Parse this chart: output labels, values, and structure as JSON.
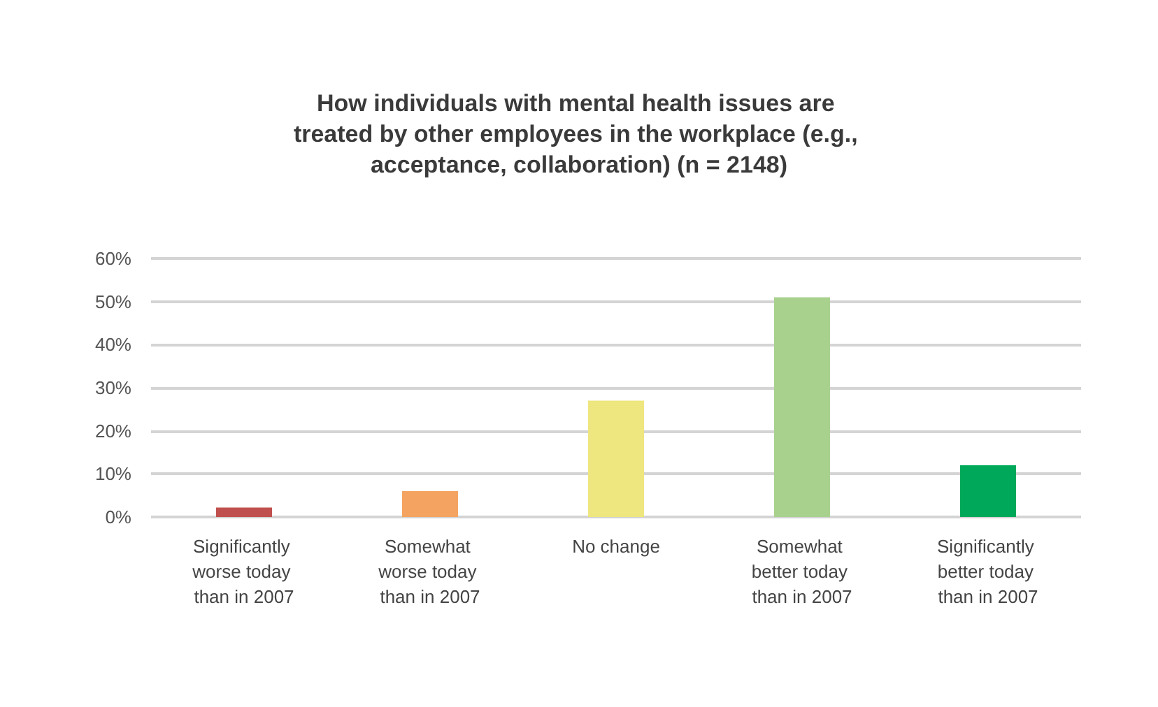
{
  "chart_data": {
    "type": "bar",
    "title": "How individuals with mental health issues are treated by other employees in the workplace (e.g., acceptance, collaboration) (n = 2148)",
    "categories": [
      "Significantly worse today than in 2007",
      "Somewhat worse today than in 2007",
      "No change",
      "Somewhat better today than in 2007",
      "Significantly better today than in 2007"
    ],
    "values": [
      2.2,
      6,
      27,
      51,
      12
    ],
    "colors": [
      "#c0504d",
      "#f4a460",
      "#eee67e",
      "#a9d18e",
      "#00a85a"
    ],
    "ylim": [
      0,
      60
    ],
    "yticks": [
      {
        "value": 0,
        "label": "0%"
      },
      {
        "value": 10,
        "label": "10%"
      },
      {
        "value": 20,
        "label": "20%"
      },
      {
        "value": 30,
        "label": "30%"
      },
      {
        "value": 40,
        "label": "40%"
      },
      {
        "value": 50,
        "label": "50%"
      },
      {
        "value": 60,
        "label": "60%"
      }
    ],
    "grid": "y"
  }
}
